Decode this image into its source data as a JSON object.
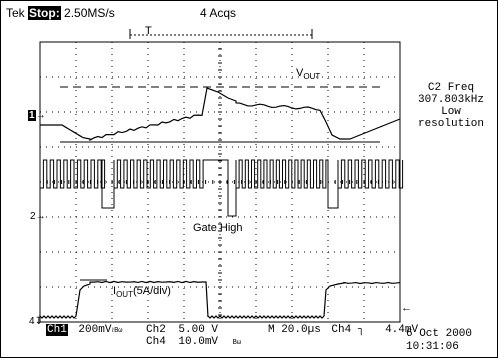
{
  "header": {
    "brand": "Tek",
    "run_state": "Stop:",
    "sample_rate": "2.50MS/s",
    "acqs": "4 Acqs",
    "trigger_marker": "T"
  },
  "annotations": {
    "vout": "V",
    "vout_sub": "OUT",
    "gate_high": "Gate High",
    "iout": "I",
    "iout_sub": "OUT",
    "iout_rest": "(5A/div)"
  },
  "channel_markers": {
    "ch1": "1",
    "ch2": "2",
    "ch4": "4"
  },
  "side_panel": {
    "line1": "C2 Freq",
    "line2": "307.803kHz",
    "line3": "Low",
    "line4": "resolution"
  },
  "footer": {
    "ch1_label": "Ch1",
    "ch1_scale": "200mV",
    "ch1_suffix": "≀Bω",
    "ch2_label": "Ch2",
    "ch2_scale": "5.00 V",
    "ch4_label": "Ch4",
    "ch4_scale": "10.0mV",
    "ch4_suffix": "Bω",
    "timebase": "M 20.0µs",
    "trig_source": "Ch4",
    "trig_slope": "┐",
    "trig_level": "4.4mV",
    "date": "6 Oct 2000",
    "time": "10:31:06"
  },
  "colors": {
    "trace": "#000000",
    "grid": "#000000",
    "background": "#ffffff"
  }
}
